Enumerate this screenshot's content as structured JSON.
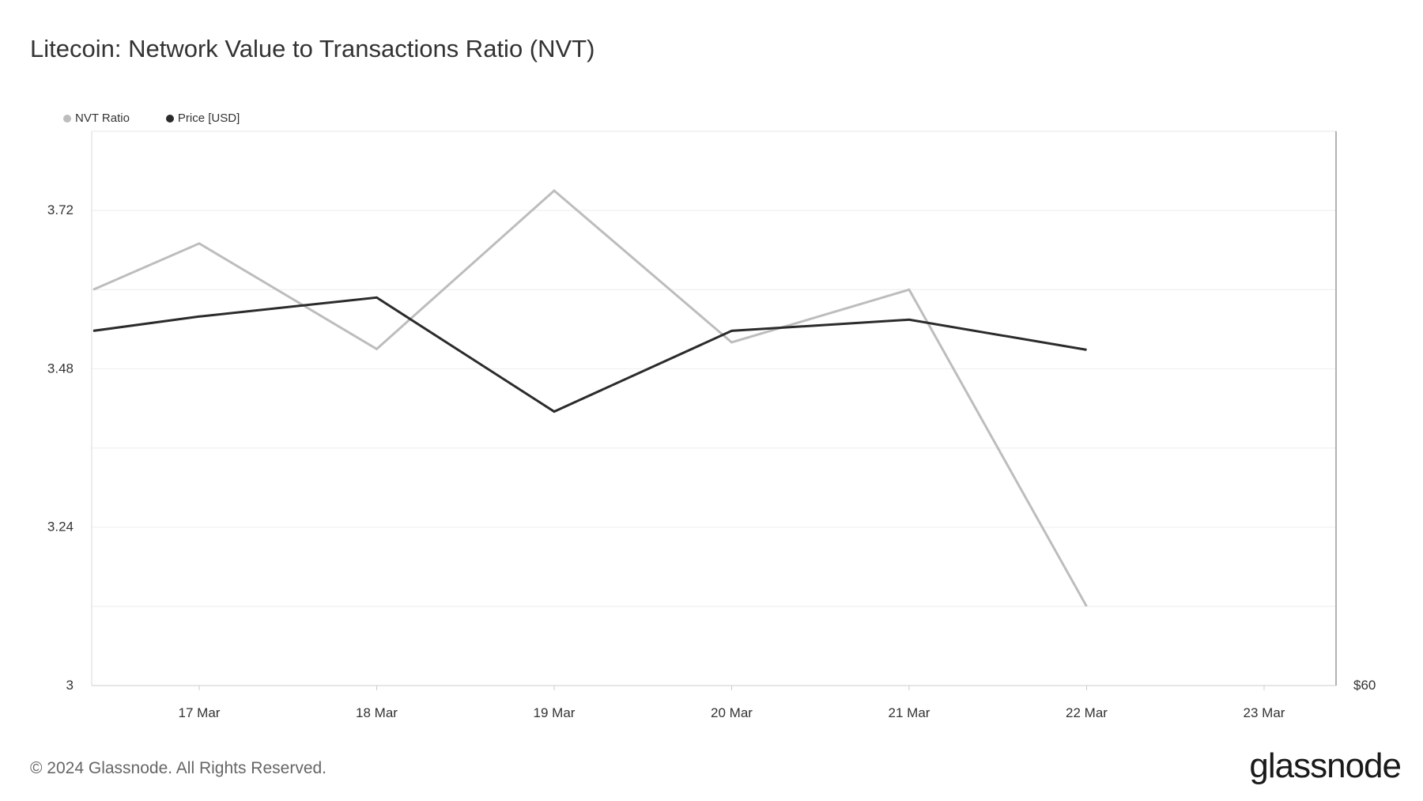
{
  "header": {
    "title": "Litecoin: Network Value to Transactions Ratio (NVT)"
  },
  "legend": [
    {
      "label": "NVT Ratio",
      "color": "#bdbdbd"
    },
    {
      "label": "Price [USD]",
      "color": "#2b2b2b"
    }
  ],
  "footer": {
    "copyright": "© 2024 Glassnode. All Rights Reserved.",
    "brand": "glassnode"
  },
  "chart_data": {
    "type": "line",
    "title": "Litecoin: Network Value to Transactions Ratio (NVT)",
    "x": [
      "16 Mar 12:00",
      "17 Mar",
      "18 Mar",
      "19 Mar",
      "20 Mar",
      "21 Mar",
      "22 Mar"
    ],
    "x_tick_labels": [
      "17 Mar",
      "18 Mar",
      "19 Mar",
      "20 Mar",
      "21 Mar",
      "22 Mar",
      "23 Mar"
    ],
    "series": [
      {
        "name": "NVT Ratio",
        "axis": "left",
        "color": "#bdbdbd",
        "values": [
          3.6,
          3.67,
          3.51,
          3.75,
          3.52,
          3.6,
          3.12
        ]
      },
      {
        "name": "Price [USD]",
        "axis": "right",
        "color": "#2b2b2b",
        "values": [
          82.4,
          83.3,
          84.5,
          77.3,
          82.4,
          83.1,
          81.2
        ]
      }
    ],
    "y_left": {
      "ticks": [
        "3",
        "3.24",
        "3.48",
        "3.72"
      ],
      "ylim": [
        3,
        3.84
      ]
    },
    "y_right": {
      "ticks": [
        "$60"
      ],
      "ylim": [
        60,
        95
      ]
    },
    "grid": true,
    "legend_position": "top-left"
  }
}
